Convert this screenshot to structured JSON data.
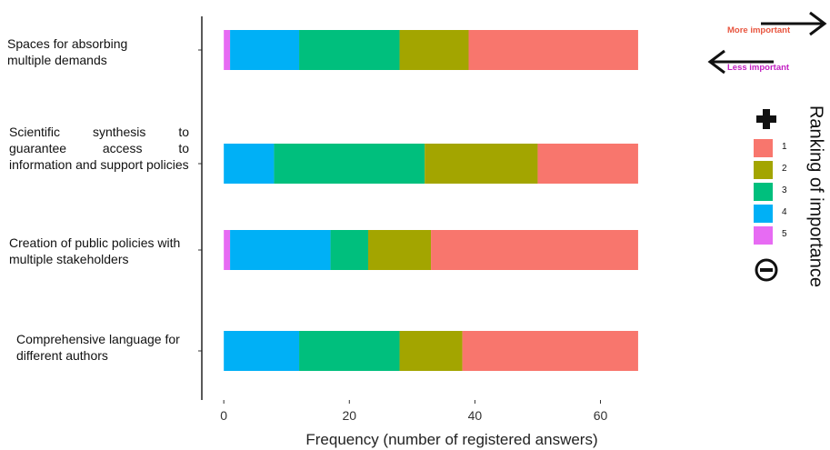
{
  "chart_data": {
    "type": "bar",
    "orientation": "horizontal",
    "stacked": true,
    "xlabel": "Frequency (number of registered answers)",
    "xlim": [
      -3.5,
      76
    ],
    "xticks": [
      0,
      20,
      40,
      60
    ],
    "grid": false,
    "categories": [
      "Spaces for absorbing multiple demands",
      "Scientific synthesis to guarantee access to information and support policies",
      "Creation of public policies with multiple stakeholders",
      "Comprehensive language for different authors"
    ],
    "series": [
      {
        "name": "5",
        "color": "#E76BF3",
        "values": [
          1,
          0,
          1,
          0
        ]
      },
      {
        "name": "4",
        "color": "#00B0F6",
        "values": [
          11,
          8,
          16,
          12
        ]
      },
      {
        "name": "3",
        "color": "#00BF7D",
        "values": [
          16,
          24,
          6,
          16
        ]
      },
      {
        "name": "2",
        "color": "#A3A500",
        "values": [
          11,
          18,
          10,
          10
        ]
      },
      {
        "name": "1",
        "color": "#F8766D",
        "values": [
          27,
          16,
          33,
          28
        ]
      }
    ],
    "legend": {
      "title": "Ranking of importance",
      "position": "right",
      "items": [
        "1",
        "2",
        "3",
        "4",
        "5"
      ],
      "top_symbol": "plus-icon",
      "bottom_symbol": "minus-circle-icon"
    },
    "annotations": [
      {
        "text": "More important",
        "color": "#E8553F",
        "arrow": "right"
      },
      {
        "text": "Less important",
        "color": "#C21FC2",
        "arrow": "left"
      }
    ]
  }
}
